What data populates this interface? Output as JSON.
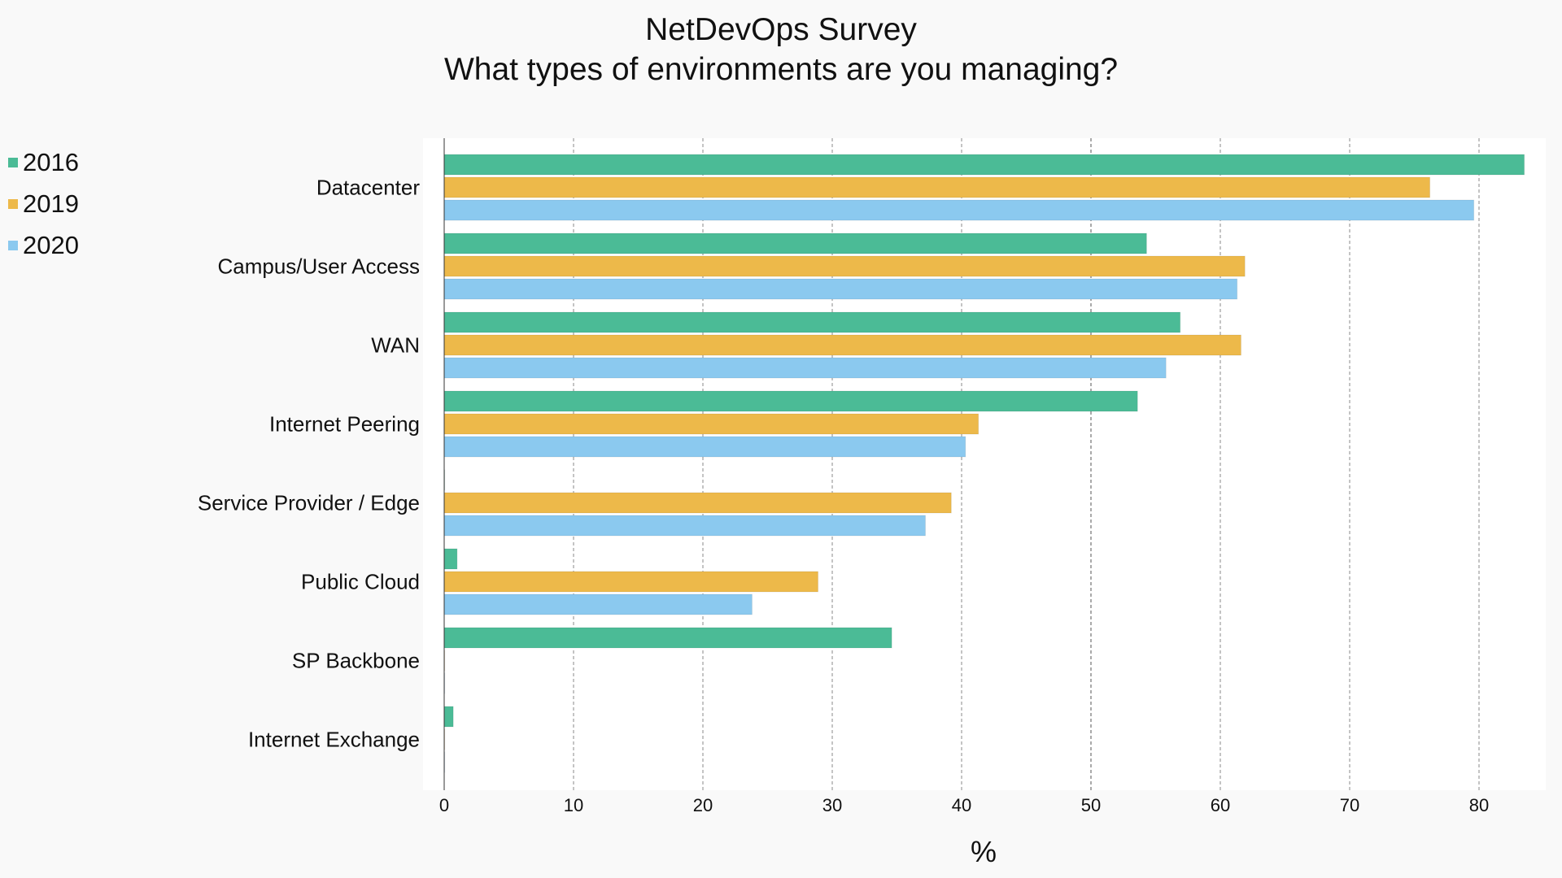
{
  "chart_data": {
    "type": "bar",
    "orientation": "horizontal",
    "title": "NetDevOps Survey",
    "subtitle": "What types of environments are you managing?",
    "xlabel": "%",
    "ylabel": "",
    "xlim": [
      0,
      85
    ],
    "xticks": [
      0,
      10,
      20,
      30,
      40,
      50,
      60,
      70,
      80
    ],
    "grid": true,
    "legend_position": "top-left",
    "categories": [
      "Datacenter",
      "Campus/User Access",
      "WAN",
      "Internet Peering",
      "Service Provider / Edge",
      "Public Cloud",
      "SP Backbone",
      "Internet Exchange"
    ],
    "series": [
      {
        "name": "2016",
        "color": "#4bbb96",
        "values": [
          83.5,
          54.3,
          56.9,
          53.6,
          0,
          1.0,
          34.6,
          0.7
        ]
      },
      {
        "name": "2019",
        "color": "#edb94a",
        "values": [
          76.2,
          61.9,
          61.6,
          41.3,
          39.2,
          28.9,
          0,
          0
        ]
      },
      {
        "name": "2020",
        "color": "#8bc9ef",
        "values": [
          79.6,
          61.3,
          55.8,
          40.3,
          37.2,
          23.8,
          0,
          0
        ]
      }
    ]
  }
}
